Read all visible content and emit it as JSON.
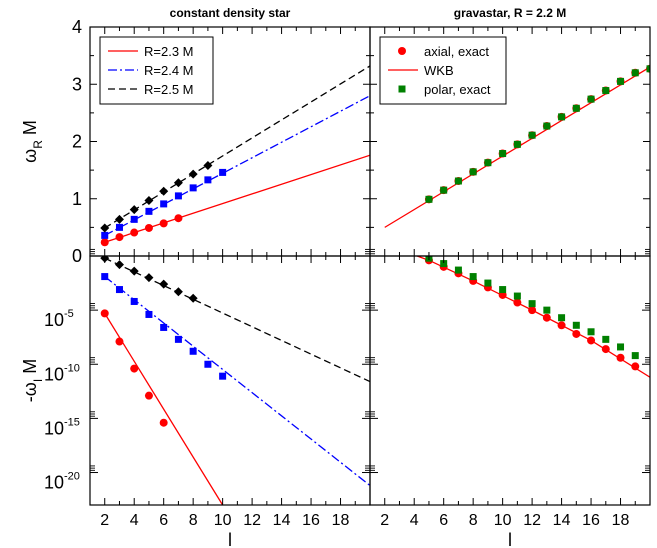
{
  "chart_data": [
    {
      "type": "line",
      "panel": "top-left",
      "title": "constant density star",
      "ylabel": {
        "main": "ω",
        "sub": "R",
        "rest": " M"
      },
      "xlim": [
        1,
        20
      ],
      "ylim": [
        0,
        4
      ],
      "yticks": [
        "0",
        "1",
        "2",
        "3",
        "4"
      ],
      "legend_placement": "top-left",
      "series": [
        {
          "name": "R=2.3 M",
          "color": "#ff0000",
          "dash": "solid",
          "marker": "circle",
          "line": [
            [
              2,
              0.24
            ],
            [
              20,
              1.76
            ]
          ],
          "points": [
            [
              2,
              0.24
            ],
            [
              3,
              0.33
            ],
            [
              4,
              0.41
            ],
            [
              5,
              0.49
            ],
            [
              6,
              0.57
            ],
            [
              7,
              0.66
            ]
          ]
        },
        {
          "name": "R=2.4 M",
          "color": "#0000ff",
          "dash": "dashdot",
          "marker": "square",
          "line": [
            [
              2,
              0.36
            ],
            [
              20,
              2.8
            ]
          ],
          "points": [
            [
              2,
              0.36
            ],
            [
              3,
              0.5
            ],
            [
              4,
              0.64
            ],
            [
              5,
              0.78
            ],
            [
              6,
              0.91
            ],
            [
              7,
              1.05
            ],
            [
              8,
              1.19
            ],
            [
              9,
              1.33
            ],
            [
              10,
              1.46
            ]
          ]
        },
        {
          "name": "R=2.5 M",
          "color": "#000000",
          "dash": "dashed",
          "marker": "diamond",
          "line": [
            [
              2,
              0.49
            ],
            [
              20,
              3.32
            ]
          ],
          "points": [
            [
              2,
              0.49
            ],
            [
              3,
              0.64
            ],
            [
              4,
              0.81
            ],
            [
              5,
              0.97
            ],
            [
              6,
              1.13
            ],
            [
              7,
              1.28
            ],
            [
              8,
              1.43
            ],
            [
              9,
              1.58
            ]
          ]
        }
      ]
    },
    {
      "type": "line",
      "panel": "top-right",
      "title": "gravastar, R = 2.2 M",
      "xlim": [
        1,
        20
      ],
      "ylim": [
        0,
        4
      ],
      "legend_placement": "top-left",
      "series": [
        {
          "name": "axial, exact",
          "color": "#ff0000",
          "marker": "circle",
          "points": [
            [
              5,
              0.99
            ],
            [
              6,
              1.15
            ],
            [
              7,
              1.31
            ],
            [
              8,
              1.47
            ],
            [
              9,
              1.63
            ],
            [
              10,
              1.79
            ],
            [
              11,
              1.95
            ],
            [
              12,
              2.11
            ],
            [
              13,
              2.27
            ],
            [
              14,
              2.43
            ],
            [
              15,
              2.58
            ],
            [
              16,
              2.74
            ],
            [
              17,
              2.89
            ],
            [
              18,
              3.05
            ],
            [
              19,
              3.2
            ],
            [
              20,
              3.27
            ]
          ]
        },
        {
          "name": "WKB",
          "color": "#ff0000",
          "dash": "solid",
          "line": [
            [
              2,
              0.5
            ],
            [
              20,
              3.3
            ]
          ]
        },
        {
          "name": "polar, exact",
          "color": "#008000",
          "marker": "square",
          "points": [
            [
              5,
              0.99
            ],
            [
              6,
              1.15
            ],
            [
              7,
              1.31
            ],
            [
              8,
              1.47
            ],
            [
              9,
              1.63
            ],
            [
              10,
              1.79
            ],
            [
              11,
              1.95
            ],
            [
              12,
              2.11
            ],
            [
              13,
              2.27
            ],
            [
              14,
              2.43
            ],
            [
              15,
              2.58
            ],
            [
              16,
              2.74
            ],
            [
              17,
              2.89
            ],
            [
              18,
              3.05
            ],
            [
              19,
              3.2
            ],
            [
              20,
              3.27
            ]
          ]
        }
      ]
    },
    {
      "type": "line",
      "panel": "bottom-left",
      "xlabel": "l",
      "ylabel": {
        "main": "-ω",
        "sub": "I",
        "rest": " M"
      },
      "yscale": "log",
      "xlim": [
        1,
        20
      ],
      "ylim_exp": [
        -23,
        0
      ],
      "xticks": [
        "2",
        "4",
        "6",
        "8",
        "10",
        "12",
        "14",
        "16",
        "18"
      ],
      "yticks": [
        {
          "base": "10",
          "exp": "-5",
          "value_exp": -5
        },
        {
          "base": "10",
          "exp": "-10",
          "value_exp": -10
        },
        {
          "base": "10",
          "exp": "-15",
          "value_exp": -15
        },
        {
          "base": "10",
          "exp": "-20",
          "value_exp": -20
        }
      ],
      "series": [
        {
          "name": "R=2.3 M",
          "color": "#ff0000",
          "dash": "solid",
          "marker": "circle",
          "line_exp": [
            [
              2,
              -5.3
            ],
            [
              10,
              -23
            ]
          ],
          "points_exp": [
            [
              2,
              -5.3
            ],
            [
              3,
              -7.9
            ],
            [
              4,
              -10.4
            ],
            [
              5,
              -12.9
            ],
            [
              6,
              -15.4
            ]
          ]
        },
        {
          "name": "R=2.4 M",
          "color": "#0000ff",
          "dash": "dashdot",
          "marker": "square",
          "line_exp": [
            [
              2,
              -1.9
            ],
            [
              20,
              -21.2
            ]
          ],
          "points_exp": [
            [
              2,
              -1.9
            ],
            [
              3,
              -3.1
            ],
            [
              4,
              -4.2
            ],
            [
              5,
              -5.4
            ],
            [
              6,
              -6.6
            ],
            [
              7,
              -7.7
            ],
            [
              8,
              -8.8
            ],
            [
              9,
              -10.0
            ],
            [
              10,
              -11.1
            ]
          ]
        },
        {
          "name": "R=2.5 M",
          "color": "#000000",
          "dash": "dashed",
          "marker": "diamond",
          "line_exp": [
            [
              2,
              -0.2
            ],
            [
              20,
              -11.6
            ]
          ],
          "points_exp": [
            [
              2,
              -0.2
            ],
            [
              3,
              -0.8
            ],
            [
              4,
              -1.4
            ],
            [
              5,
              -2.0
            ],
            [
              6,
              -2.6
            ],
            [
              7,
              -3.3
            ],
            [
              8,
              -3.9
            ]
          ]
        }
      ]
    },
    {
      "type": "line",
      "panel": "bottom-right",
      "xlabel": "l",
      "yscale": "log",
      "xlim": [
        1,
        20
      ],
      "ylim_exp": [
        -23,
        0
      ],
      "xticks": [
        "2",
        "4",
        "6",
        "8",
        "10",
        "12",
        "14",
        "16",
        "18"
      ],
      "series": [
        {
          "name": "axial, exact",
          "color": "#ff0000",
          "marker": "circle",
          "points_exp": [
            [
              5,
              -0.4
            ],
            [
              6,
              -1.0
            ],
            [
              7,
              -1.6
            ],
            [
              8,
              -2.3
            ],
            [
              9,
              -2.9
            ],
            [
              10,
              -3.6
            ],
            [
              11,
              -4.3
            ],
            [
              12,
              -5.0
            ],
            [
              13,
              -5.7
            ],
            [
              14,
              -6.4
            ],
            [
              15,
              -7.2
            ],
            [
              16,
              -7.8
            ],
            [
              17,
              -8.6
            ],
            [
              18,
              -9.4
            ],
            [
              19,
              -10.2
            ]
          ]
        },
        {
          "name": "WKB",
          "color": "#ff0000",
          "dash": "solid",
          "line_exp": [
            [
              1,
              1.6
            ],
            [
              5,
              -0.4
            ],
            [
              8,
              -2.3
            ],
            [
              12,
              -5.0
            ],
            [
              16,
              -7.8
            ],
            [
              20,
              -11.2
            ]
          ]
        },
        {
          "name": "polar, exact",
          "color": "#008000",
          "marker": "square",
          "points_exp": [
            [
              5,
              -0.2
            ],
            [
              6,
              -0.7
            ],
            [
              7,
              -1.3
            ],
            [
              8,
              -1.9
            ],
            [
              9,
              -2.5
            ],
            [
              10,
              -3.1
            ],
            [
              11,
              -3.7
            ],
            [
              12,
              -4.4
            ],
            [
              13,
              -5.0
            ],
            [
              14,
              -5.7
            ],
            [
              15,
              -6.4
            ],
            [
              16,
              -7.0
            ],
            [
              17,
              -7.7
            ],
            [
              18,
              -8.4
            ],
            [
              19,
              -9.2
            ]
          ]
        }
      ]
    }
  ]
}
